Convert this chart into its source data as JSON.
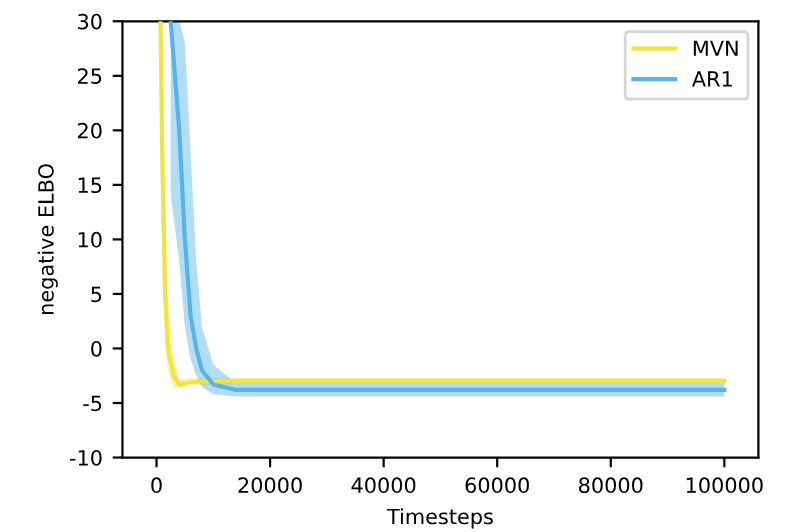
{
  "chart_data": {
    "type": "line",
    "xlabel": "Timesteps",
    "ylabel": "negative ELBO",
    "xlim": [
      -6000,
      106000
    ],
    "ylim": [
      -10,
      30
    ],
    "xticks": [
      0,
      20000,
      40000,
      60000,
      80000,
      100000
    ],
    "yticks": [
      -10,
      -5,
      0,
      5,
      10,
      15,
      20,
      25,
      30
    ],
    "grid": false,
    "legend": "top right",
    "marker": "none",
    "line_style": "solid",
    "series": [
      {
        "name": "MVN",
        "color": "#f0e442",
        "x": [
          700,
          1000,
          1500,
          2000,
          3000,
          4000,
          6000,
          10000,
          20000,
          40000,
          60000,
          80000,
          100000
        ],
        "values": [
          30,
          18,
          5,
          0,
          -2.5,
          -3.3,
          -3.1,
          -3.0,
          -3.0,
          -3.0,
          -3.0,
          -3.0,
          -3.0
        ],
        "lower": [
          25,
          10,
          1,
          -2,
          -3.5,
          -3.7,
          -3.4,
          -3.3,
          -3.3,
          -3.3,
          -3.3,
          -3.3,
          -3.3
        ],
        "upper": [
          30,
          30,
          14,
          5,
          -0.5,
          -2.8,
          -2.7,
          -2.7,
          -2.7,
          -2.7,
          -2.7,
          -2.7,
          -2.7
        ]
      },
      {
        "name": "AR1",
        "color": "#56b4e9",
        "x": [
          2500,
          4000,
          5000,
          6000,
          7000,
          8000,
          10000,
          14000,
          20000,
          40000,
          60000,
          80000,
          100000
        ],
        "values": [
          30,
          20,
          10,
          3,
          0,
          -2,
          -3.3,
          -3.8,
          -3.8,
          -3.8,
          -3.8,
          -3.8,
          -3.8
        ],
        "lower": [
          14,
          8,
          2,
          -1,
          -2.5,
          -3.5,
          -4.2,
          -4.4,
          -4.4,
          -4.4,
          -4.4,
          -4.4,
          -4.4
        ],
        "upper": [
          30,
          30,
          28,
          18,
          8,
          2,
          -1.5,
          -3.2,
          -3.2,
          -3.2,
          -3.2,
          -3.2,
          -3.2
        ]
      }
    ]
  }
}
